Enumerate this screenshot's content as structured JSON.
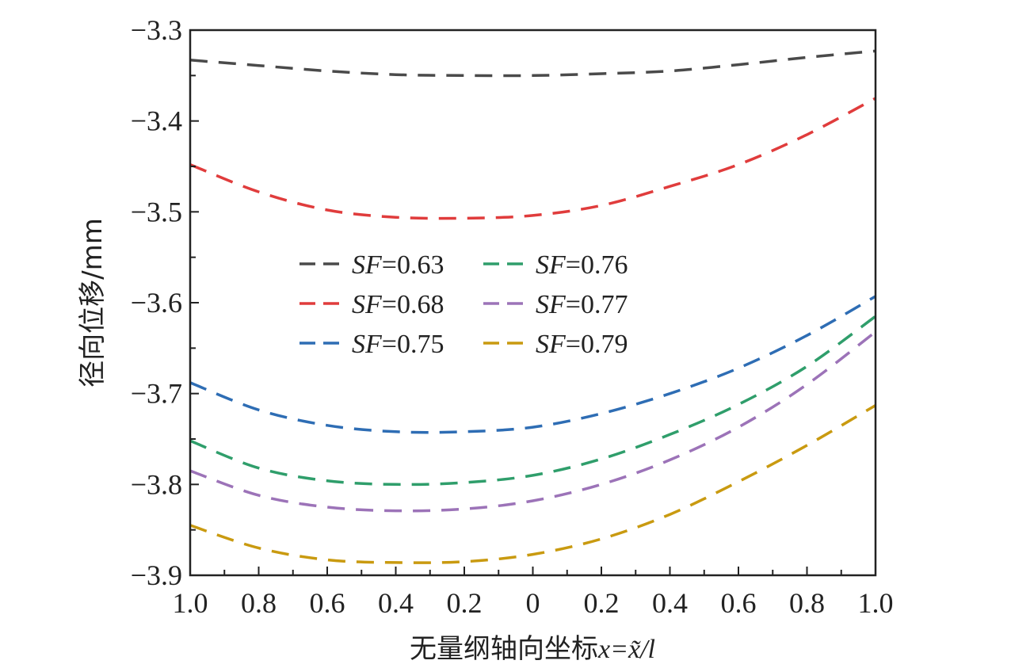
{
  "chart_data": {
    "type": "line",
    "title": "",
    "xlabel": "无量纲轴向坐标",
    "xlabel_math": "x=x̃/l",
    "ylabel": "径向位移/mm",
    "xlim": [
      -1.0,
      1.0
    ],
    "ylim": [
      -3.9,
      -3.3
    ],
    "grid": false,
    "legend_position": "center-left",
    "x_ticks": [
      -1.0,
      -0.8,
      -0.6,
      -0.4,
      -0.2,
      0,
      0.2,
      0.4,
      0.6,
      0.8,
      1.0
    ],
    "x_tick_labels": [
      "1.0",
      "0.8",
      "0.6",
      "0.4",
      "0.2",
      "0",
      "0.2",
      "0.4",
      "0.6",
      "0.8",
      "1.0"
    ],
    "y_ticks": [
      -3.3,
      -3.4,
      -3.5,
      -3.6,
      -3.7,
      -3.8,
      -3.9
    ],
    "y_tick_labels": [
      "−3.3",
      "−3.4",
      "−3.5",
      "−3.6",
      "−3.7",
      "−3.8",
      "−3.9"
    ],
    "x": [
      -1.0,
      -0.8,
      -0.6,
      -0.4,
      -0.2,
      0,
      0.2,
      0.4,
      0.6,
      0.8,
      1.0
    ],
    "series": [
      {
        "name": "SF=0.63",
        "legend_prefix": "SF",
        "legend_value": "=0.63",
        "color": "#4a4a4a",
        "values": [
          -3.333,
          -3.339,
          -3.345,
          -3.349,
          -3.35,
          -3.35,
          -3.348,
          -3.345,
          -3.338,
          -3.33,
          -3.323
        ]
      },
      {
        "name": "SF=0.68",
        "legend_prefix": "SF",
        "legend_value": "=0.68",
        "color": "#e03c3c",
        "values": [
          -3.448,
          -3.478,
          -3.498,
          -3.506,
          -3.507,
          -3.504,
          -3.493,
          -3.472,
          -3.448,
          -3.415,
          -3.375
        ]
      },
      {
        "name": "SF=0.75",
        "legend_prefix": "SF",
        "legend_value": "=0.75",
        "color": "#2e6db4",
        "values": [
          -3.688,
          -3.718,
          -3.735,
          -3.742,
          -3.742,
          -3.737,
          -3.722,
          -3.7,
          -3.672,
          -3.636,
          -3.593
        ]
      },
      {
        "name": "SF=0.76",
        "legend_prefix": "SF",
        "legend_value": "=0.76",
        "color": "#2f9e6b",
        "values": [
          -3.752,
          -3.782,
          -3.796,
          -3.8,
          -3.798,
          -3.79,
          -3.772,
          -3.745,
          -3.712,
          -3.67,
          -3.615
        ]
      },
      {
        "name": "SF=0.77",
        "legend_prefix": "SF",
        "legend_value": "=0.77",
        "color": "#9c73b8",
        "values": [
          -3.785,
          -3.812,
          -3.825,
          -3.829,
          -3.827,
          -3.818,
          -3.8,
          -3.773,
          -3.737,
          -3.69,
          -3.632
        ]
      },
      {
        "name": "SF=0.79",
        "legend_prefix": "SF",
        "legend_value": "=0.79",
        "color": "#c99a10",
        "values": [
          -3.845,
          -3.87,
          -3.883,
          -3.886,
          -3.885,
          -3.877,
          -3.86,
          -3.833,
          -3.797,
          -3.757,
          -3.713
        ]
      }
    ]
  }
}
